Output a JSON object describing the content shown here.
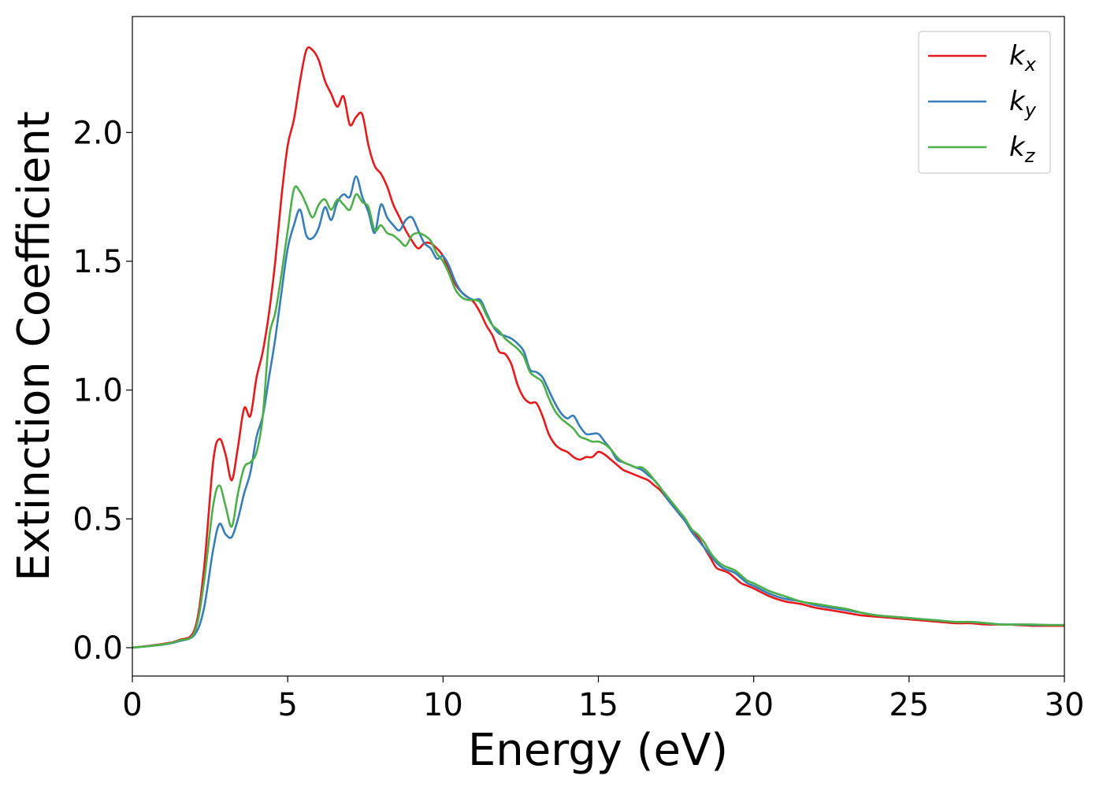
{
  "chart_data": {
    "type": "line",
    "xlabel": "Energy (eV)",
    "ylabel": "Extinction Coefficient",
    "xlim": [
      0,
      30
    ],
    "ylim": [
      -0.11,
      2.45
    ],
    "xticks": [
      0,
      5,
      10,
      15,
      20,
      25,
      30
    ],
    "yticks": [
      0.0,
      0.5,
      1.0,
      1.5,
      2.0
    ],
    "xtick_labels": [
      "0",
      "5",
      "10",
      "15",
      "20",
      "25",
      "30"
    ],
    "ytick_labels": [
      "0.0",
      "0.5",
      "1.0",
      "1.5",
      "2.0"
    ],
    "grid": false,
    "legend_position": "top-right",
    "series": [
      {
        "name": "k_x",
        "label_main": "k",
        "label_sub": "x",
        "color": "#e41a1c",
        "x": [
          0,
          1,
          1.5,
          2,
          2.3,
          2.6,
          2.8,
          3.0,
          3.2,
          3.4,
          3.6,
          3.8,
          4.0,
          4.2,
          4.4,
          4.6,
          4.8,
          5.0,
          5.2,
          5.4,
          5.6,
          5.8,
          6.0,
          6.2,
          6.4,
          6.6,
          6.8,
          7.0,
          7.2,
          7.4,
          7.6,
          7.8,
          8.0,
          8.2,
          8.4,
          8.6,
          8.8,
          9.0,
          9.2,
          9.4,
          9.6,
          9.8,
          10.0,
          10.2,
          10.4,
          10.6,
          10.8,
          11.0,
          11.2,
          11.4,
          11.6,
          11.8,
          12.0,
          12.2,
          12.4,
          12.6,
          12.8,
          13.0,
          13.2,
          13.4,
          13.6,
          13.8,
          14.0,
          14.2,
          14.4,
          14.6,
          14.8,
          15.0,
          15.2,
          15.4,
          15.6,
          15.8,
          16.0,
          16.2,
          16.4,
          16.6,
          16.8,
          17.0,
          17.2,
          17.4,
          17.6,
          17.8,
          18.0,
          18.2,
          18.4,
          18.6,
          18.8,
          19.0,
          19.2,
          19.4,
          19.6,
          19.8,
          20.0,
          20.5,
          21,
          21.5,
          22,
          22.5,
          23,
          23.5,
          24,
          24.5,
          25,
          25.5,
          26,
          26.5,
          27,
          27.5,
          28,
          28.5,
          29,
          29.5,
          30
        ],
        "y": [
          0.0,
          0.015,
          0.03,
          0.07,
          0.3,
          0.72,
          0.81,
          0.75,
          0.65,
          0.78,
          0.93,
          0.9,
          1.05,
          1.15,
          1.3,
          1.5,
          1.75,
          1.95,
          2.05,
          2.2,
          2.32,
          2.32,
          2.28,
          2.2,
          2.15,
          2.1,
          2.14,
          2.03,
          2.06,
          2.07,
          1.95,
          1.87,
          1.84,
          1.79,
          1.72,
          1.67,
          1.62,
          1.58,
          1.55,
          1.57,
          1.57,
          1.55,
          1.52,
          1.46,
          1.41,
          1.38,
          1.36,
          1.34,
          1.3,
          1.25,
          1.21,
          1.15,
          1.14,
          1.1,
          1.02,
          0.97,
          0.95,
          0.95,
          0.9,
          0.83,
          0.79,
          0.77,
          0.76,
          0.74,
          0.73,
          0.74,
          0.74,
          0.76,
          0.75,
          0.73,
          0.71,
          0.69,
          0.68,
          0.67,
          0.66,
          0.65,
          0.63,
          0.61,
          0.58,
          0.55,
          0.52,
          0.49,
          0.46,
          0.43,
          0.39,
          0.35,
          0.31,
          0.3,
          0.29,
          0.27,
          0.25,
          0.24,
          0.23,
          0.2,
          0.18,
          0.17,
          0.155,
          0.145,
          0.135,
          0.125,
          0.12,
          0.115,
          0.11,
          0.105,
          0.1,
          0.095,
          0.095,
          0.09,
          0.09,
          0.088,
          0.085,
          0.085,
          0.085
        ]
      },
      {
        "name": "k_y",
        "label_main": "k",
        "label_sub": "y",
        "color": "#377eb8",
        "x": [
          0,
          1,
          1.5,
          2,
          2.3,
          2.6,
          2.8,
          3.0,
          3.2,
          3.4,
          3.6,
          3.8,
          4.0,
          4.2,
          4.4,
          4.6,
          4.8,
          5.0,
          5.2,
          5.4,
          5.6,
          5.8,
          6.0,
          6.2,
          6.4,
          6.6,
          6.8,
          7.0,
          7.2,
          7.4,
          7.6,
          7.8,
          8.0,
          8.2,
          8.4,
          8.6,
          8.8,
          9.0,
          9.2,
          9.4,
          9.6,
          9.8,
          10.0,
          10.2,
          10.4,
          10.6,
          10.8,
          11.0,
          11.2,
          11.4,
          11.6,
          11.8,
          12.0,
          12.2,
          12.4,
          12.6,
          12.8,
          13.0,
          13.2,
          13.4,
          13.6,
          13.8,
          14.0,
          14.2,
          14.4,
          14.6,
          14.8,
          15.0,
          15.2,
          15.4,
          15.6,
          15.8,
          16.0,
          16.2,
          16.4,
          16.6,
          16.8,
          17.0,
          17.2,
          17.4,
          17.6,
          17.8,
          18.0,
          18.2,
          18.4,
          18.6,
          18.8,
          19.0,
          19.2,
          19.4,
          19.6,
          19.8,
          20.0,
          20.5,
          21,
          21.5,
          22,
          22.5,
          23,
          23.5,
          24,
          24.5,
          25,
          25.5,
          26,
          26.5,
          27,
          27.5,
          28,
          28.5,
          29,
          29.5,
          30
        ],
        "y": [
          0.0,
          0.012,
          0.025,
          0.05,
          0.15,
          0.38,
          0.48,
          0.44,
          0.43,
          0.5,
          0.6,
          0.68,
          0.82,
          0.9,
          1.05,
          1.2,
          1.38,
          1.55,
          1.64,
          1.7,
          1.6,
          1.59,
          1.63,
          1.71,
          1.66,
          1.73,
          1.76,
          1.75,
          1.83,
          1.75,
          1.69,
          1.61,
          1.72,
          1.67,
          1.64,
          1.62,
          1.66,
          1.67,
          1.62,
          1.57,
          1.55,
          1.51,
          1.52,
          1.48,
          1.42,
          1.38,
          1.36,
          1.35,
          1.35,
          1.3,
          1.25,
          1.22,
          1.21,
          1.2,
          1.18,
          1.15,
          1.08,
          1.07,
          1.05,
          1.0,
          0.95,
          0.91,
          0.89,
          0.9,
          0.86,
          0.83,
          0.83,
          0.83,
          0.8,
          0.77,
          0.73,
          0.72,
          0.71,
          0.7,
          0.69,
          0.67,
          0.65,
          0.62,
          0.58,
          0.55,
          0.52,
          0.49,
          0.45,
          0.42,
          0.39,
          0.36,
          0.33,
          0.31,
          0.3,
          0.29,
          0.27,
          0.25,
          0.24,
          0.21,
          0.19,
          0.18,
          0.165,
          0.155,
          0.145,
          0.135,
          0.125,
          0.12,
          0.115,
          0.11,
          0.105,
          0.1,
          0.1,
          0.095,
          0.09,
          0.09,
          0.088,
          0.088,
          0.088
        ]
      },
      {
        "name": "k_z",
        "label_main": "k",
        "label_sub": "z",
        "color": "#4daf4a",
        "x": [
          0,
          1,
          1.5,
          2,
          2.3,
          2.6,
          2.8,
          3.0,
          3.2,
          3.4,
          3.6,
          3.8,
          4.0,
          4.2,
          4.4,
          4.6,
          4.8,
          5.0,
          5.2,
          5.4,
          5.6,
          5.8,
          6.0,
          6.2,
          6.4,
          6.6,
          6.8,
          7.0,
          7.2,
          7.4,
          7.6,
          7.8,
          8.0,
          8.2,
          8.4,
          8.6,
          8.8,
          9.0,
          9.2,
          9.4,
          9.6,
          9.8,
          10.0,
          10.2,
          10.4,
          10.6,
          10.8,
          11.0,
          11.2,
          11.4,
          11.6,
          11.8,
          12.0,
          12.2,
          12.4,
          12.6,
          12.8,
          13.0,
          13.2,
          13.4,
          13.6,
          13.8,
          14.0,
          14.2,
          14.4,
          14.6,
          14.8,
          15.0,
          15.2,
          15.4,
          15.6,
          15.8,
          16.0,
          16.2,
          16.4,
          16.6,
          16.8,
          17.0,
          17.2,
          17.4,
          17.6,
          17.8,
          18.0,
          18.2,
          18.4,
          18.6,
          18.8,
          19.0,
          19.2,
          19.4,
          19.6,
          19.8,
          20.0,
          20.5,
          21,
          21.5,
          22,
          22.5,
          23,
          23.5,
          24,
          24.5,
          25,
          25.5,
          26,
          26.5,
          27,
          27.5,
          28,
          28.5,
          29,
          29.5,
          30
        ],
        "y": [
          0.0,
          0.013,
          0.028,
          0.06,
          0.25,
          0.55,
          0.63,
          0.55,
          0.47,
          0.6,
          0.7,
          0.72,
          0.76,
          0.9,
          1.2,
          1.3,
          1.45,
          1.62,
          1.78,
          1.77,
          1.72,
          1.67,
          1.72,
          1.74,
          1.7,
          1.74,
          1.72,
          1.7,
          1.76,
          1.73,
          1.71,
          1.62,
          1.64,
          1.61,
          1.6,
          1.58,
          1.56,
          1.6,
          1.61,
          1.6,
          1.58,
          1.53,
          1.5,
          1.45,
          1.39,
          1.36,
          1.35,
          1.35,
          1.34,
          1.29,
          1.25,
          1.23,
          1.2,
          1.18,
          1.16,
          1.13,
          1.07,
          1.05,
          1.03,
          0.97,
          0.92,
          0.89,
          0.87,
          0.85,
          0.82,
          0.81,
          0.8,
          0.8,
          0.79,
          0.77,
          0.74,
          0.72,
          0.71,
          0.7,
          0.7,
          0.68,
          0.65,
          0.62,
          0.59,
          0.56,
          0.53,
          0.5,
          0.46,
          0.44,
          0.41,
          0.37,
          0.34,
          0.32,
          0.31,
          0.3,
          0.28,
          0.26,
          0.25,
          0.22,
          0.2,
          0.18,
          0.17,
          0.16,
          0.15,
          0.135,
          0.125,
          0.12,
          0.115,
          0.11,
          0.105,
          0.1,
          0.1,
          0.095,
          0.09,
          0.09,
          0.09,
          0.088,
          0.088
        ]
      }
    ]
  }
}
